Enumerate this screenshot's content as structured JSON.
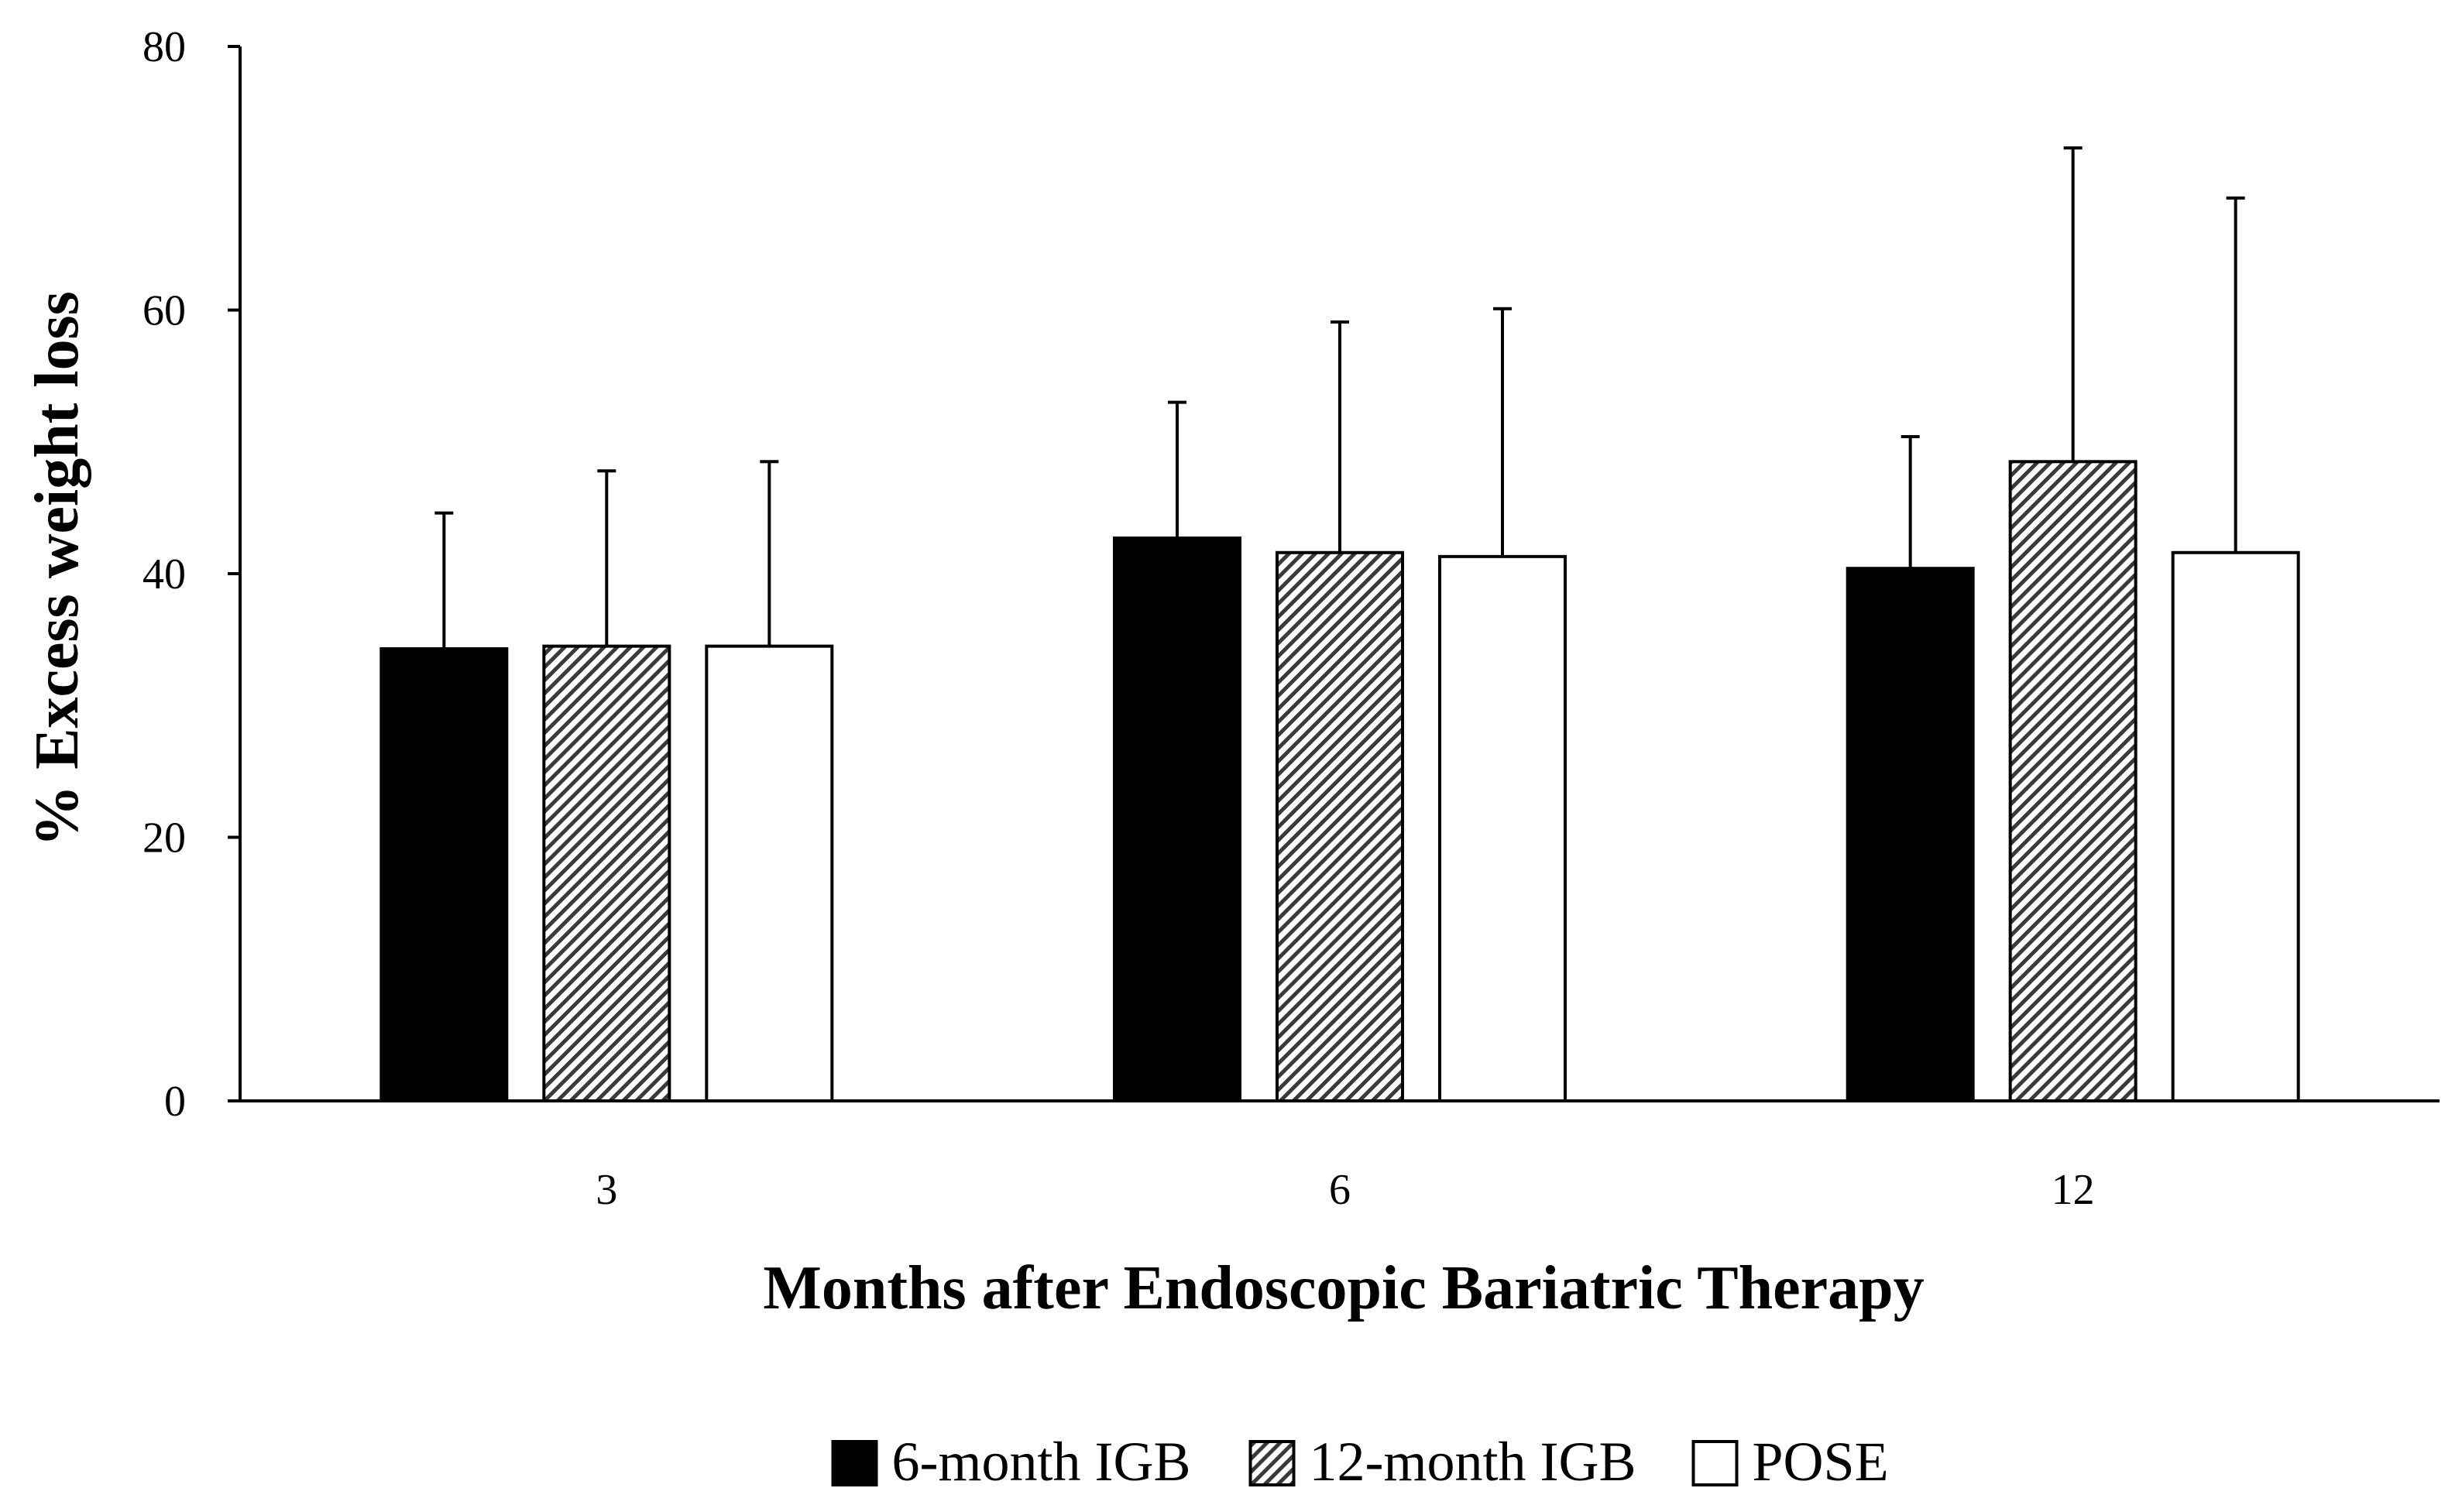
{
  "chart_data": {
    "type": "bar",
    "title": "",
    "xlabel": "Months after Endoscopic Bariatric Therapy",
    "ylabel": "% Excess weight loss",
    "ylim": [
      0,
      80
    ],
    "yticks": [
      0,
      20,
      40,
      60,
      80
    ],
    "categories": [
      "3",
      "6",
      "12"
    ],
    "series": [
      {
        "name": "6-month IGB",
        "style": "solid",
        "color": "#000000",
        "values": [
          34.3,
          42.7,
          40.4
        ],
        "errors": [
          10.3,
          10.3,
          10.0
        ]
      },
      {
        "name": "12-month IGB",
        "style": "hatched",
        "color": "#000000",
        "values": [
          34.5,
          41.6,
          48.5
        ],
        "errors": [
          13.3,
          17.5,
          23.8
        ]
      },
      {
        "name": "POSE",
        "style": "hollow",
        "color": "#ffffff",
        "values": [
          34.5,
          41.3,
          41.6
        ],
        "errors": [
          14.0,
          18.8,
          26.9
        ]
      }
    ],
    "legend_position": "bottom-center",
    "grid": false
  }
}
